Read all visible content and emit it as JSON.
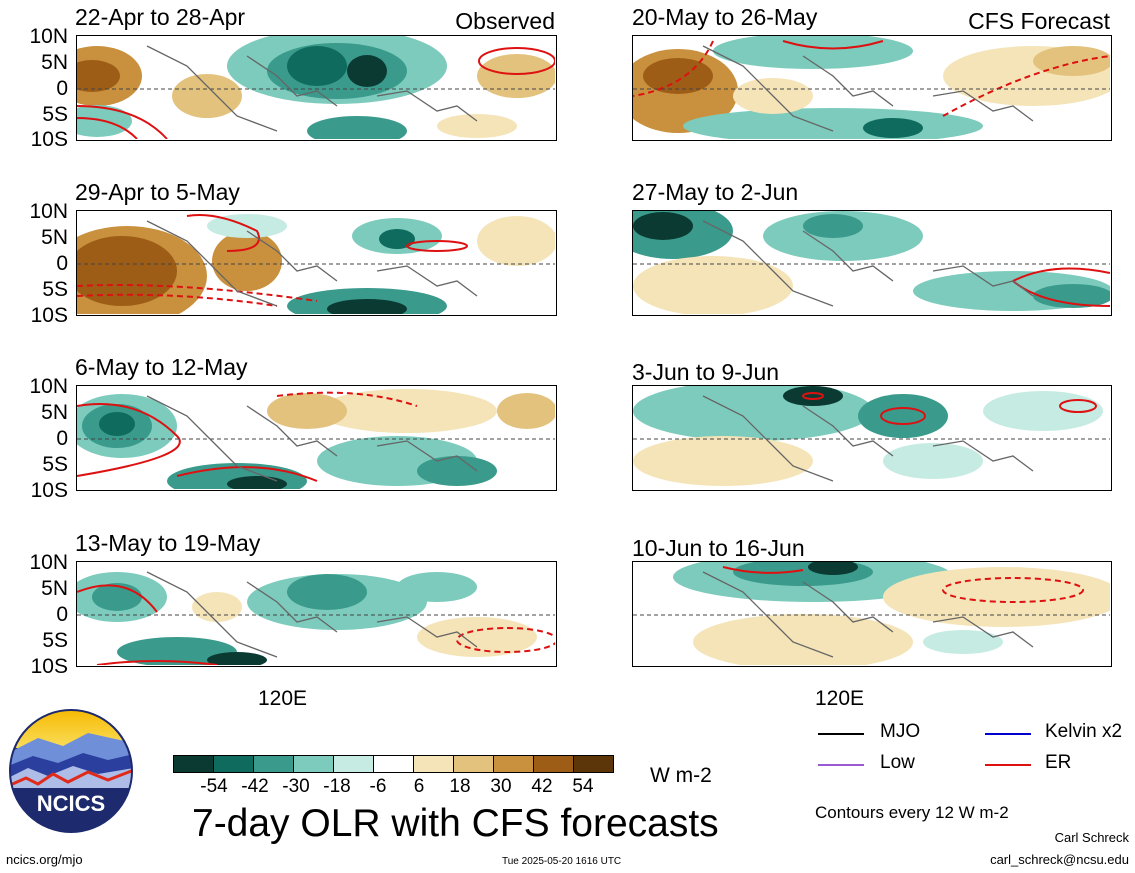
{
  "panels_left": [
    {
      "title": "22-Apr to 28-Apr",
      "label": "Observed"
    },
    {
      "title": "29-Apr to 5-May",
      "label": ""
    },
    {
      "title": "6-May to 12-May",
      "label": ""
    },
    {
      "title": "13-May to 19-May",
      "label": ""
    }
  ],
  "panels_right": [
    {
      "title": "20-May to 26-May",
      "label": "CFS Forecast"
    },
    {
      "title": "27-May to 2-Jun",
      "label": ""
    },
    {
      "title": "3-Jun to 9-Jun",
      "label": ""
    },
    {
      "title": "10-Jun to 16-Jun",
      "label": ""
    }
  ],
  "lat_labels": [
    "10N",
    "5N",
    "0",
    "5S",
    "10S"
  ],
  "x_tick": "120E",
  "colorbar": {
    "colors": [
      "#0b3a33",
      "#0e6b5e",
      "#3a9a8c",
      "#7ccbbd",
      "#c5ebe3",
      "#ffffff",
      "#f4e4b8",
      "#e3c27d",
      "#c9913e",
      "#9e5d17",
      "#5c3509"
    ],
    "labels": [
      "-54",
      "-42",
      "-30",
      "-18",
      "-6",
      "6",
      "18",
      "30",
      "42",
      "54"
    ],
    "units": "W m-2"
  },
  "title": "7-day OLR with CFS forecasts",
  "logo_text": "NCICS",
  "url": "ncics.org/mjo",
  "timestamp": "Tue 2025-05-20 1616 UTC",
  "author": "Carl Schreck",
  "email": "carl_schreck@ncsu.edu",
  "contour_note": "Contours every 12 W m-2",
  "legend": [
    {
      "label": "MJO",
      "color": "#000000"
    },
    {
      "label": "Kelvin x2",
      "color": "#0000cc"
    },
    {
      "label": "Low",
      "color": "#9b59d6"
    },
    {
      "label": "ER",
      "color": "#dd1111"
    }
  ]
}
